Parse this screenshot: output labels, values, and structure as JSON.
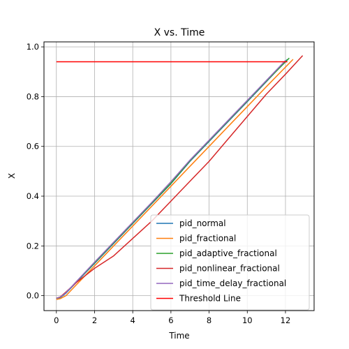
{
  "chart_data": {
    "type": "line",
    "title": "X vs. Time",
    "xlabel": "Time",
    "ylabel": "X",
    "xlim": [
      -0.65,
      13.5
    ],
    "ylim": [
      -0.06,
      1.02
    ],
    "xticks": [
      0,
      2,
      4,
      6,
      8,
      10,
      12
    ],
    "yticks": [
      0.0,
      0.2,
      0.4,
      0.6,
      0.8,
      1.0
    ],
    "xtick_labels": [
      "0",
      "2",
      "4",
      "6",
      "8",
      "10",
      "12"
    ],
    "ytick_labels": [
      "0.0",
      "0.2",
      "0.4",
      "0.6",
      "0.8",
      "1.0"
    ],
    "grid": true,
    "legend_position": "lower-right",
    "series": [
      {
        "name": "pid_normal",
        "color": "#1f77b4",
        "x": [
          0,
          0.2,
          0.5,
          1,
          2,
          3,
          4,
          5,
          6,
          7,
          8,
          9,
          10,
          11,
          12.1
        ],
        "y": [
          -0.01,
          -0.008,
          0.01,
          0.05,
          0.13,
          0.21,
          0.29,
          0.37,
          0.45,
          0.54,
          0.62,
          0.7,
          0.78,
          0.86,
          0.95
        ]
      },
      {
        "name": "pid_fractional",
        "color": "#ff7f0e",
        "x": [
          0,
          0.2,
          0.5,
          1,
          2,
          3,
          4,
          5,
          6,
          7,
          8,
          9,
          10,
          11,
          12.4
        ],
        "y": [
          -0.015,
          -0.012,
          0.0,
          0.04,
          0.12,
          0.2,
          0.28,
          0.36,
          0.44,
          0.52,
          0.6,
          0.68,
          0.76,
          0.84,
          0.95
        ]
      },
      {
        "name": "pid_adaptive_fractional",
        "color": "#2ca02c",
        "x": [
          0,
          0.2,
          0.5,
          1,
          2,
          3,
          4,
          5,
          6,
          7,
          8,
          9,
          10,
          11,
          12.2
        ],
        "y": [
          -0.01,
          -0.007,
          0.012,
          0.052,
          0.132,
          0.212,
          0.292,
          0.372,
          0.452,
          0.542,
          0.622,
          0.702,
          0.782,
          0.862,
          0.955
        ]
      },
      {
        "name": "pid_nonlinear_fractional",
        "color": "#d62728",
        "x": [
          0,
          0.2,
          0.5,
          1,
          2,
          3,
          4,
          5,
          6,
          7,
          8,
          9,
          10,
          11,
          12,
          12.9
        ],
        "y": [
          -0.01,
          -0.005,
          0.015,
          0.05,
          0.11,
          0.16,
          0.23,
          0.3,
          0.38,
          0.46,
          0.54,
          0.63,
          0.72,
          0.81,
          0.89,
          0.965
        ]
      },
      {
        "name": "pid_time_delay_fractional",
        "color": "#9467bd",
        "x": [
          0,
          0.2,
          0.5,
          1,
          2,
          3,
          4,
          5,
          6,
          7,
          8,
          9,
          10,
          11,
          12
        ],
        "y": [
          -0.01,
          -0.006,
          0.012,
          0.053,
          0.135,
          0.215,
          0.295,
          0.375,
          0.458,
          0.545,
          0.625,
          0.705,
          0.785,
          0.865,
          0.945
        ]
      },
      {
        "name": "Threshold Line",
        "color": "#ff0000",
        "x": [
          0,
          12.1
        ],
        "y": [
          0.94,
          0.94
        ]
      }
    ]
  }
}
